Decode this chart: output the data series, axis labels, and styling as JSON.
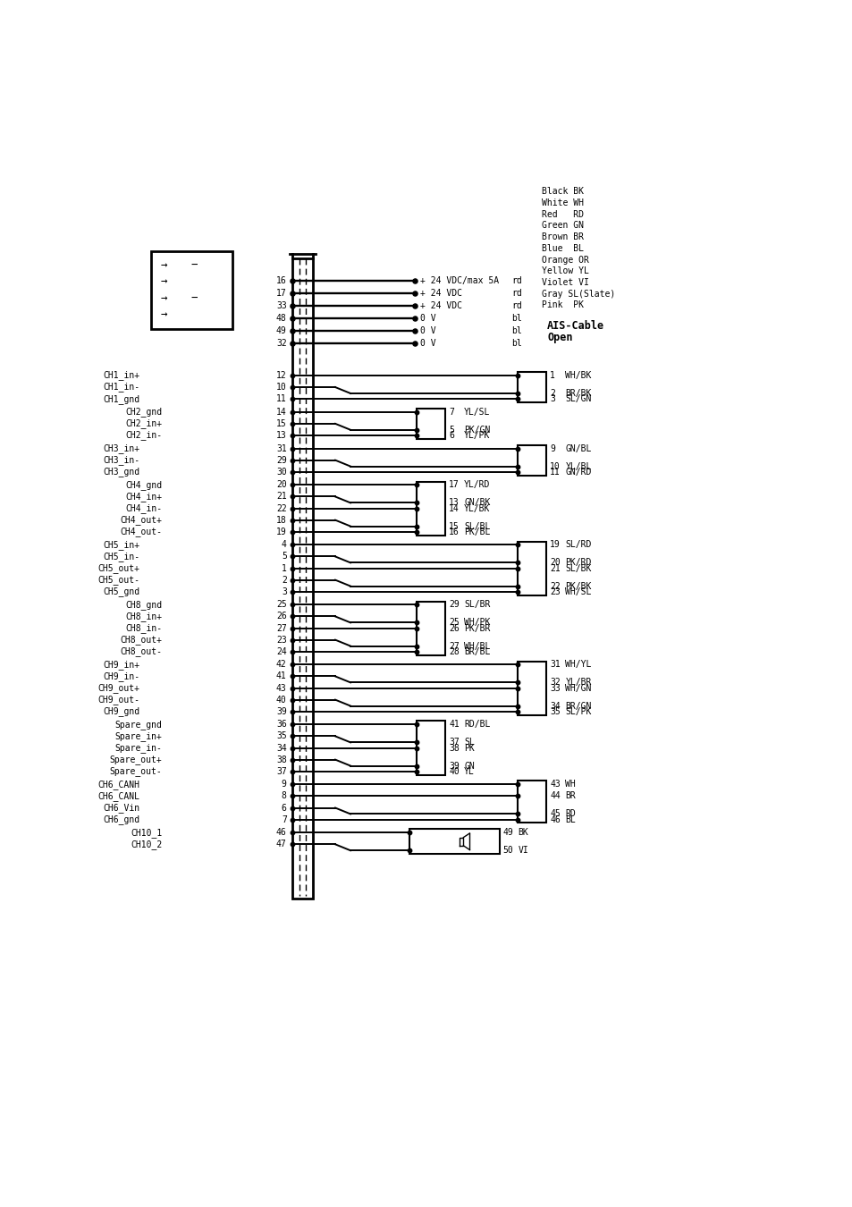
{
  "bg_color": "#ffffff",
  "text_color": "#000000",
  "font_family": "monospace",
  "font_size": 7.0,
  "color_legend": [
    "Black BK",
    "White WH",
    "Red   RD",
    "Green GN",
    "Brown BR",
    "Blue  BL",
    "Orange OR",
    "Yellow YL",
    "Violet VI",
    "Gray SL(Slate)",
    "Pink  PK"
  ],
  "ais_cable_label": [
    "AIS-Cable",
    "Open"
  ],
  "power_rows": [
    {
      "pin": "16",
      "label": "+ 24 VDC/max 5A",
      "color_code": "rd"
    },
    {
      "pin": "17",
      "label": "+ 24 VDC",
      "color_code": "rd"
    },
    {
      "pin": "33",
      "label": "+ 24 VDC",
      "color_code": "rd"
    },
    {
      "pin": "48",
      "label": "0 V",
      "color_code": "bl"
    },
    {
      "pin": "49",
      "label": "0 V",
      "color_code": "bl"
    },
    {
      "pin": "32",
      "label": "0 V",
      "color_code": "bl"
    }
  ],
  "connector_groups": [
    {
      "type": "passthrough",
      "left_pins": [
        {
          "label": "CH1_in+",
          "pin": "12",
          "indent": false
        },
        {
          "label": "CH1_in-",
          "pin": "10",
          "indent": false
        },
        {
          "label": "CH1_gnd",
          "pin": "11",
          "indent": false
        }
      ],
      "right_pins": [
        {
          "num": "1",
          "label": "WH/BK"
        },
        {
          "num": "2",
          "label": "BR/BK"
        },
        {
          "num": "3",
          "label": "SL/GN"
        }
      ],
      "kinks": [
        1
      ]
    },
    {
      "type": "sub",
      "left_pins": [
        {
          "label": "CH2_gnd",
          "pin": "14",
          "indent": true
        },
        {
          "label": "CH2_in+",
          "pin": "15",
          "indent": true
        },
        {
          "label": "CH2_in-",
          "pin": "13",
          "indent": true
        }
      ],
      "right_pins": [
        {
          "num": "7",
          "label": "YL/SL"
        },
        {
          "num": "5",
          "label": "PK/GN"
        },
        {
          "num": "6",
          "label": "YL/PK"
        }
      ],
      "kinks": [
        1
      ]
    },
    {
      "type": "passthrough",
      "left_pins": [
        {
          "label": "CH3_in+",
          "pin": "31",
          "indent": false
        },
        {
          "label": "CH3_in-",
          "pin": "29",
          "indent": false
        },
        {
          "label": "CH3_gnd",
          "pin": "30",
          "indent": false
        }
      ],
      "right_pins": [
        {
          "num": "9",
          "label": "GN/BL"
        },
        {
          "num": "10",
          "label": "YL/BL"
        },
        {
          "num": "11",
          "label": "GN/RD"
        }
      ],
      "kinks": [
        1
      ]
    },
    {
      "type": "sub",
      "left_pins": [
        {
          "label": "CH4_gnd",
          "pin": "20",
          "indent": true
        },
        {
          "label": "CH4_in+",
          "pin": "21",
          "indent": true
        },
        {
          "label": "CH4_in-",
          "pin": "22",
          "indent": true
        },
        {
          "label": "CH4_out+",
          "pin": "18",
          "indent": true
        },
        {
          "label": "CH4_out-",
          "pin": "19",
          "indent": true
        }
      ],
      "right_pins": [
        {
          "num": "17",
          "label": "YL/RD"
        },
        {
          "num": "13",
          "label": "GN/BK"
        },
        {
          "num": "14",
          "label": "YL/BK"
        },
        {
          "num": "15",
          "label": "SL/BL"
        },
        {
          "num": "16",
          "label": "PK/BL"
        }
      ],
      "kinks": [
        1,
        3
      ]
    },
    {
      "type": "passthrough",
      "left_pins": [
        {
          "label": "CH5_in+",
          "pin": "4",
          "indent": false
        },
        {
          "label": "CH5_in-",
          "pin": "5",
          "indent": false
        },
        {
          "label": "CH5_out+",
          "pin": "1",
          "indent": false
        },
        {
          "label": "CH5_out-",
          "pin": "2",
          "indent": false
        },
        {
          "label": "CH5_gnd",
          "pin": "3",
          "indent": false
        }
      ],
      "right_pins": [
        {
          "num": "19",
          "label": "SL/RD"
        },
        {
          "num": "20",
          "label": "PK/RD"
        },
        {
          "num": "21",
          "label": "SL/BK"
        },
        {
          "num": "22",
          "label": "PK/BK"
        },
        {
          "num": "23",
          "label": "WH/SL"
        }
      ],
      "kinks": [
        1,
        3
      ]
    },
    {
      "type": "sub",
      "left_pins": [
        {
          "label": "CH8_gnd",
          "pin": "25",
          "indent": true
        },
        {
          "label": "CH8_in+",
          "pin": "26",
          "indent": true
        },
        {
          "label": "CH8_in-",
          "pin": "27",
          "indent": true
        },
        {
          "label": "CH8_out+",
          "pin": "23",
          "indent": true
        },
        {
          "label": "CH8_out-",
          "pin": "24",
          "indent": true
        }
      ],
      "right_pins": [
        {
          "num": "29",
          "label": "SL/BR"
        },
        {
          "num": "25",
          "label": "WH/PK"
        },
        {
          "num": "26",
          "label": "PK/BR"
        },
        {
          "num": "27",
          "label": "WH/BL"
        },
        {
          "num": "28",
          "label": "BR/BL"
        }
      ],
      "kinks": [
        1,
        3
      ]
    },
    {
      "type": "passthrough",
      "left_pins": [
        {
          "label": "CH9_in+",
          "pin": "42",
          "indent": false
        },
        {
          "label": "CH9_in-",
          "pin": "41",
          "indent": false
        },
        {
          "label": "CH9_out+",
          "pin": "43",
          "indent": false
        },
        {
          "label": "CH9_out-",
          "pin": "40",
          "indent": false
        },
        {
          "label": "CH9_gnd",
          "pin": "39",
          "indent": false
        }
      ],
      "right_pins": [
        {
          "num": "31",
          "label": "WH/YL"
        },
        {
          "num": "32",
          "label": "YL/BR"
        },
        {
          "num": "33",
          "label": "WH/GN"
        },
        {
          "num": "34",
          "label": "BR/GN"
        },
        {
          "num": "35",
          "label": "SL/PK"
        }
      ],
      "kinks": [
        1,
        3
      ]
    },
    {
      "type": "sub",
      "left_pins": [
        {
          "label": "Spare_gnd",
          "pin": "36",
          "indent": true
        },
        {
          "label": "Spare_in+",
          "pin": "35",
          "indent": true
        },
        {
          "label": "Spare_in-",
          "pin": "34",
          "indent": true
        },
        {
          "label": "Spare_out+",
          "pin": "38",
          "indent": true
        },
        {
          "label": "Spare_out-",
          "pin": "37",
          "indent": true
        }
      ],
      "right_pins": [
        {
          "num": "41",
          "label": "RD/BL"
        },
        {
          "num": "37",
          "label": "SL"
        },
        {
          "num": "38",
          "label": "PK"
        },
        {
          "num": "39",
          "label": "GN"
        },
        {
          "num": "40",
          "label": "YL"
        }
      ],
      "kinks": [
        1,
        3
      ]
    },
    {
      "type": "passthrough",
      "left_pins": [
        {
          "label": "CH6_CANH",
          "pin": "9",
          "indent": false
        },
        {
          "label": "CH6_CANL",
          "pin": "8",
          "indent": false
        },
        {
          "label": "CH6_Vin",
          "pin": "6",
          "indent": false
        },
        {
          "label": "CH6_gnd",
          "pin": "7",
          "indent": false
        }
      ],
      "right_pins": [
        {
          "num": "43",
          "label": "WH"
        },
        {
          "num": "44",
          "label": "BR"
        },
        {
          "num": "45",
          "label": "RD"
        },
        {
          "num": "46",
          "label": "BL"
        }
      ],
      "kinks": [
        2
      ]
    },
    {
      "type": "speaker",
      "left_pins": [
        {
          "label": "CH10_1",
          "pin": "46",
          "indent": true
        },
        {
          "label": "CH10_2",
          "pin": "47",
          "indent": true
        }
      ],
      "right_pins": [
        {
          "num": "49",
          "label": "BK"
        },
        {
          "num": "50",
          "label": "VI"
        }
      ],
      "kinks": [
        1
      ]
    }
  ]
}
